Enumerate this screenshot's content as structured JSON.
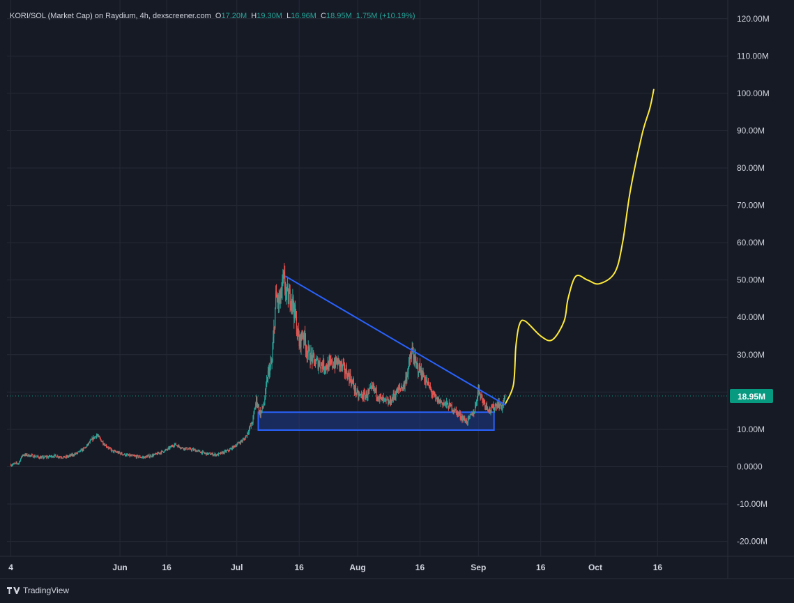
{
  "header": {
    "symbol": "KORI/SOL (Market Cap) on Raydium, 4h, dexscreener.com",
    "o_label": "O",
    "o_value": "17.20M",
    "h_label": "H",
    "h_value": "19.30M",
    "l_label": "L",
    "l_value": "16.96M",
    "c_label": "C",
    "c_value": "18.95M",
    "change": "1.75M (+10.19%)"
  },
  "footer": {
    "brand": "TradingView"
  },
  "colors": {
    "background": "#161a25",
    "grid": "#262a36",
    "axis_text": "#d1d4dc",
    "up": "#26a69a",
    "down": "#ef5350",
    "trendline": "#2962ff",
    "zone_fill": "#1e3a8a",
    "projection": "#ffeb3b",
    "price_tag": "#089981"
  },
  "chart_data": {
    "type": "candlestick",
    "yaxis": {
      "ticks": [
        "120.00M",
        "110.00M",
        "100.00M",
        "90.00M",
        "80.00M",
        "70.00M",
        "60.00M",
        "50.00M",
        "40.00M",
        "30.00M",
        "20.00M",
        "10.00M",
        "0.0000",
        "-10.00M",
        "-20.00M"
      ],
      "tick_values": [
        120,
        110,
        100,
        90,
        80,
        70,
        60,
        50,
        40,
        30,
        20,
        10,
        0,
        -10,
        -20
      ],
      "unit": "M",
      "ylim": [
        -24,
        125
      ]
    },
    "xaxis": {
      "ticks": [
        "4",
        "Jun",
        "16",
        "Jul",
        "16",
        "Aug",
        "16",
        "Sep",
        "16",
        "Oct",
        "16"
      ],
      "tick_days": [
        0,
        28,
        40,
        58,
        74,
        89,
        105,
        120,
        136,
        150,
        166
      ],
      "xlim": [
        -1,
        184
      ]
    },
    "last_price": {
      "label": "18.95M",
      "value": 18.95
    },
    "trendline": {
      "from": {
        "day": 70.5,
        "value": 51
      },
      "to": {
        "day": 127,
        "value": 16.5
      }
    },
    "support_zone": {
      "day_start": 63.5,
      "day_end": 124,
      "low": 9.8,
      "high": 14.6
    },
    "projection": [
      [
        127,
        17
      ],
      [
        129,
        22
      ],
      [
        129.6,
        32
      ],
      [
        130.5,
        38
      ],
      [
        132,
        39
      ],
      [
        136,
        35
      ],
      [
        139,
        34
      ],
      [
        142,
        39
      ],
      [
        143,
        45
      ],
      [
        145,
        51
      ],
      [
        148,
        50
      ],
      [
        151,
        49
      ],
      [
        155,
        52
      ],
      [
        157,
        60
      ],
      [
        159,
        74
      ],
      [
        162,
        89
      ],
      [
        164,
        96
      ],
      [
        165,
        101
      ]
    ],
    "price_path": [
      [
        0,
        0.5
      ],
      [
        2,
        1
      ],
      [
        3,
        3.2
      ],
      [
        5,
        3
      ],
      [
        8,
        2.4
      ],
      [
        11,
        2.9
      ],
      [
        14,
        2.5
      ],
      [
        17,
        3.6
      ],
      [
        19,
        5
      ],
      [
        21,
        7.5
      ],
      [
        22,
        8.5
      ],
      [
        24,
        6
      ],
      [
        26,
        4.2
      ],
      [
        30,
        3
      ],
      [
        34,
        2.5
      ],
      [
        37,
        3.2
      ],
      [
        40,
        4.5
      ],
      [
        42,
        6
      ],
      [
        44,
        5
      ],
      [
        47,
        4.5
      ],
      [
        50,
        3.5
      ],
      [
        53,
        3.2
      ],
      [
        56,
        4.4
      ],
      [
        58,
        6
      ],
      [
        60,
        7.5
      ],
      [
        62,
        12
      ],
      [
        63,
        18
      ],
      [
        64,
        14
      ],
      [
        65,
        17
      ],
      [
        66,
        25
      ],
      [
        67,
        28
      ],
      [
        68,
        45
      ],
      [
        69,
        44
      ],
      [
        70,
        50
      ],
      [
        71,
        45
      ],
      [
        72,
        46
      ],
      [
        73,
        40
      ],
      [
        74,
        33
      ],
      [
        75,
        36
      ],
      [
        76,
        31
      ],
      [
        78,
        28
      ],
      [
        81,
        27
      ],
      [
        84,
        28
      ],
      [
        87,
        24
      ],
      [
        89,
        19
      ],
      [
        91,
        19
      ],
      [
        93,
        21
      ],
      [
        95,
        18
      ],
      [
        97,
        17
      ],
      [
        99,
        20
      ],
      [
        101,
        22
      ],
      [
        103,
        31
      ],
      [
        104,
        27
      ],
      [
        105,
        26
      ],
      [
        107,
        22
      ],
      [
        109,
        18
      ],
      [
        111,
        17
      ],
      [
        113,
        16
      ],
      [
        115,
        14
      ],
      [
        117,
        12
      ],
      [
        119,
        15
      ],
      [
        120,
        21
      ],
      [
        121,
        18
      ],
      [
        123,
        15
      ],
      [
        125,
        17
      ],
      [
        126,
        16
      ],
      [
        127,
        18.95
      ]
    ]
  }
}
